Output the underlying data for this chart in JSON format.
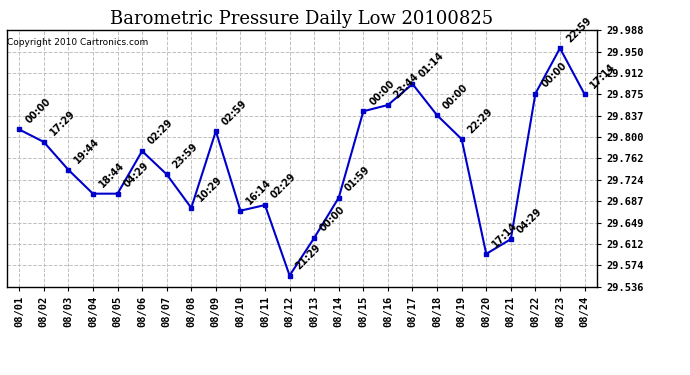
{
  "title": "Barometric Pressure Daily Low 20100825",
  "copyright": "Copyright 2010 Cartronics.com",
  "x_labels": [
    "08/01",
    "08/02",
    "08/03",
    "08/04",
    "08/05",
    "08/06",
    "08/07",
    "08/08",
    "08/09",
    "08/10",
    "08/11",
    "08/12",
    "08/13",
    "08/14",
    "08/15",
    "08/16",
    "08/17",
    "08/18",
    "08/19",
    "08/20",
    "08/21",
    "08/22",
    "08/23",
    "08/24"
  ],
  "x_indices": [
    0,
    1,
    2,
    3,
    4,
    5,
    6,
    7,
    8,
    9,
    10,
    11,
    12,
    13,
    14,
    15,
    16,
    17,
    18,
    19,
    20,
    21,
    22,
    23
  ],
  "y_values": [
    29.813,
    29.791,
    29.742,
    29.7,
    29.7,
    29.775,
    29.734,
    29.675,
    29.81,
    29.67,
    29.68,
    29.556,
    29.622,
    29.693,
    29.845,
    29.856,
    29.893,
    29.838,
    29.796,
    29.594,
    29.62,
    29.876,
    29.956,
    29.875
  ],
  "point_labels": [
    "00:00",
    "17:29",
    "19:44",
    "18:44",
    "04:29",
    "02:29",
    "23:59",
    "10:29",
    "02:59",
    "16:14",
    "02:29",
    "21:29",
    "00:00",
    "01:59",
    "00:00",
    "23:44",
    "01:14",
    "00:00",
    "22:29",
    "17:14",
    "04:29",
    "00:00",
    "22:59",
    "17:14"
  ],
  "line_color": "#0000CC",
  "marker_color": "#0000CC",
  "background_color": "#ffffff",
  "grid_color": "#c0c0c0",
  "title_fontsize": 13,
  "label_fontsize": 7,
  "tick_fontsize": 7.5,
  "ylim": [
    29.536,
    29.988
  ],
  "yticks": [
    29.536,
    29.574,
    29.612,
    29.649,
    29.687,
    29.724,
    29.762,
    29.8,
    29.837,
    29.875,
    29.912,
    29.95,
    29.988
  ]
}
